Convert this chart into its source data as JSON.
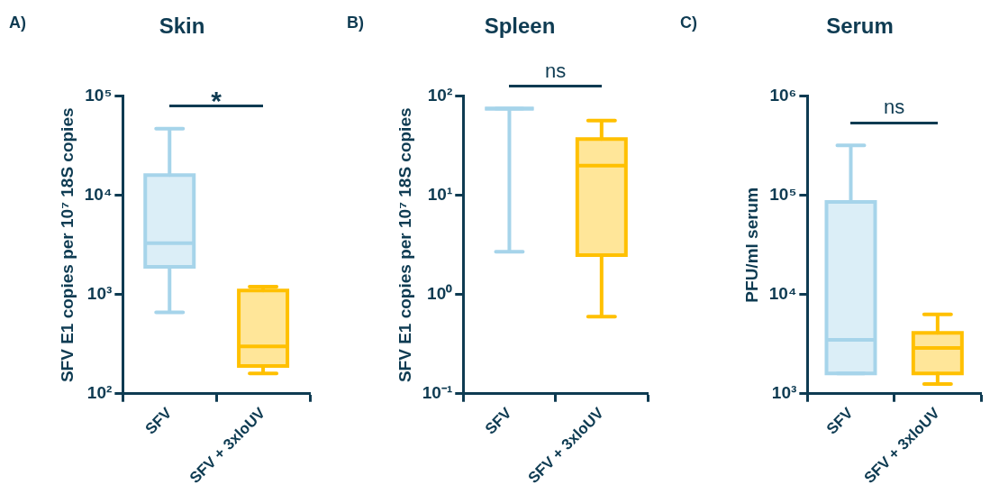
{
  "chart_data": [
    {
      "type": "box",
      "title": "Skin",
      "ylabel": "SFV E1 copies per 10⁷ 18S copies",
      "categories": [
        "SFV",
        "SFV + 3xloUV"
      ],
      "colors": [
        "#a6d4ea",
        "#ffc000"
      ],
      "boxes": [
        {
          "low": 660,
          "q1": 1900,
          "median": 3300,
          "q3": 16000,
          "high": 47000
        },
        {
          "low": 160,
          "q1": 190,
          "median": 300,
          "q3": 1100,
          "high": 1200
        }
      ],
      "log": "y",
      "ylim": [
        100,
        100000
      ],
      "yticks": [
        {
          "value": 100,
          "label": "10²"
        },
        {
          "value": 1000,
          "label": "10³"
        },
        {
          "value": 10000,
          "label": "10⁴"
        },
        {
          "value": 100000,
          "label": "10⁵"
        }
      ],
      "annotations": [
        "A)",
        "*"
      ]
    },
    {
      "type": "box",
      "title": "Spleen",
      "ylabel": "SFV E1 copies per 10⁷ 18S copies",
      "categories": [
        "SFV",
        "SFV + 3xloUV"
      ],
      "colors": [
        "#a6d4ea",
        "#ffc000"
      ],
      "boxes": [
        {
          "low": 2.7,
          "q1": 75,
          "median": 75,
          "q3": 75,
          "high": 75
        },
        {
          "low": 0.6,
          "q1": 2.5,
          "median": 20,
          "q3": 37,
          "high": 57
        }
      ],
      "log": "y",
      "ylim": [
        0.1,
        100
      ],
      "yticks": [
        {
          "value": 0.1,
          "label": "10⁻¹"
        },
        {
          "value": 1,
          "label": "10⁰"
        },
        {
          "value": 10,
          "label": "10¹"
        },
        {
          "value": 100,
          "label": "10²"
        }
      ],
      "annotations": [
        "B)",
        "ns"
      ]
    },
    {
      "type": "box",
      "title": "Serum",
      "ylabel": "PFU/ml serum",
      "categories": [
        "SFV",
        "SFV + 3xloUV"
      ],
      "colors": [
        "#a6d4ea",
        "#ffc000"
      ],
      "boxes": [
        {
          "low": 1600,
          "q1": 1600,
          "median": 3500,
          "q3": 86000,
          "high": 320000
        },
        {
          "low": 1250,
          "q1": 1600,
          "median": 2900,
          "q3": 4100,
          "high": 6300
        }
      ],
      "log": "y",
      "ylim": [
        1000,
        1000000
      ],
      "yticks": [
        {
          "value": 1000,
          "label": "10³"
        },
        {
          "value": 10000,
          "label": "10⁴"
        },
        {
          "value": 100000,
          "label": "10⁵"
        },
        {
          "value": 1000000,
          "label": "10⁶"
        }
      ],
      "annotations": [
        "C)",
        "ns"
      ]
    }
  ]
}
